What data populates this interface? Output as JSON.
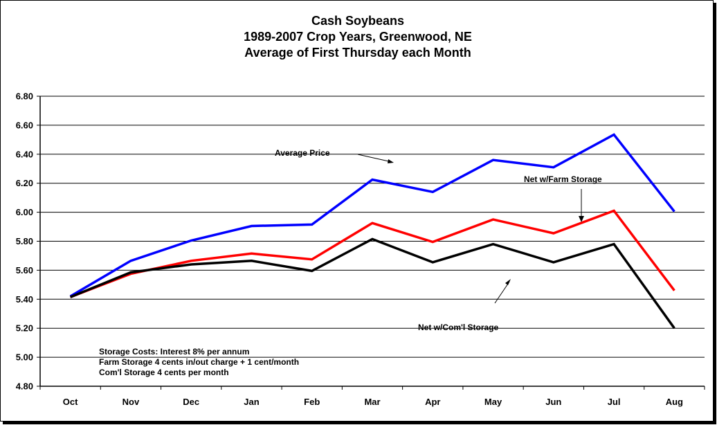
{
  "chart_data": {
    "type": "line",
    "title": [
      "Cash Soybeans",
      "1989-2007 Crop Years, Greenwood, NE",
      "Average of First Thursday each Month"
    ],
    "categories": [
      "Oct",
      "Nov",
      "Dec",
      "Jan",
      "Feb",
      "Mar",
      "Apr",
      "May",
      "Jun",
      "Jul",
      "Aug"
    ],
    "ylim": [
      4.8,
      6.8
    ],
    "yticks": [
      "4.80",
      "5.00",
      "5.20",
      "5.40",
      "5.60",
      "5.80",
      "6.00",
      "6.20",
      "6.40",
      "6.60",
      "6.80"
    ],
    "grid": true,
    "series": [
      {
        "name": "Average Price",
        "color": "#0000ff",
        "values": [
          5.42,
          5.665,
          5.805,
          5.905,
          5.915,
          6.225,
          6.14,
          6.36,
          6.31,
          6.535,
          6.005
        ]
      },
      {
        "name": "Net w/Farm  Storage",
        "color": "#ff0000",
        "values": [
          5.415,
          5.575,
          5.665,
          5.715,
          5.675,
          5.925,
          5.795,
          5.95,
          5.855,
          6.01,
          5.46
        ]
      },
      {
        "name": "Net w/Com'l Storage",
        "color": "#000000",
        "values": [
          5.415,
          5.585,
          5.64,
          5.665,
          5.595,
          5.815,
          5.655,
          5.78,
          5.655,
          5.78,
          5.2
        ]
      }
    ],
    "annotations": [
      "Average Price",
      "Net w/Farm  Storage",
      "Net w/Com'l Storage"
    ],
    "notes": [
      "Storage Costs:  Interest 8% per annum",
      "Farm Storage 4 cents in/out charge + 1 cent/month",
      "Com'l Storage 4 cents per month"
    ]
  }
}
